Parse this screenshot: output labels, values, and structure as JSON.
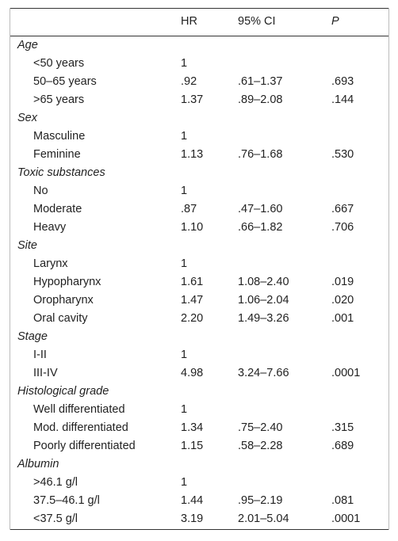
{
  "table": {
    "columns": [
      "HR",
      "95% CI",
      "P"
    ],
    "groups": [
      {
        "title": "Age",
        "rows": [
          [
            "<50 years",
            "1"
          ],
          [
            "50–65 years",
            ".92",
            ".61–1.37",
            ".693"
          ],
          [
            ">65 years",
            "1.37",
            ".89–2.08",
            ".144"
          ]
        ]
      },
      {
        "title": "Sex",
        "rows": [
          [
            "Masculine",
            "1"
          ],
          [
            "Feminine",
            "1.13",
            ".76–1.68",
            ".530"
          ]
        ]
      },
      {
        "title": "Toxic substances",
        "rows": [
          [
            "No",
            "1"
          ],
          [
            "Moderate",
            ".87",
            ".47–1.60",
            ".667"
          ],
          [
            "Heavy",
            "1.10",
            ".66–1.82",
            ".706"
          ]
        ]
      },
      {
        "title": "Site",
        "rows": [
          [
            "Larynx",
            "1"
          ],
          [
            "Hypopharynx",
            "1.61",
            "1.08–2.40",
            ".019"
          ],
          [
            "Oropharynx",
            "1.47",
            "1.06–2.04",
            ".020"
          ],
          [
            "Oral cavity",
            "2.20",
            "1.49–3.26",
            ".001"
          ]
        ]
      },
      {
        "title": "Stage",
        "rows": [
          [
            "I-II",
            "1"
          ],
          [
            "III-IV",
            "4.98",
            "3.24–7.66",
            ".0001"
          ]
        ]
      },
      {
        "title": "Histological grade",
        "rows": [
          [
            "Well differentiated",
            "1"
          ],
          [
            "Mod. differentiated",
            "1.34",
            ".75–2.40",
            ".315"
          ],
          [
            "Poorly differentiated",
            "1.15",
            ".58–2.28",
            ".689"
          ]
        ]
      },
      {
        "title": "Albumin",
        "rows": [
          [
            ">46.1 g/l",
            "1"
          ],
          [
            "37.5–46.1 g/l",
            "1.44",
            ".95–2.19",
            ".081"
          ],
          [
            "<37.5 g/l",
            "3.19",
            "2.01–5.04",
            ".0001"
          ]
        ]
      }
    ]
  }
}
